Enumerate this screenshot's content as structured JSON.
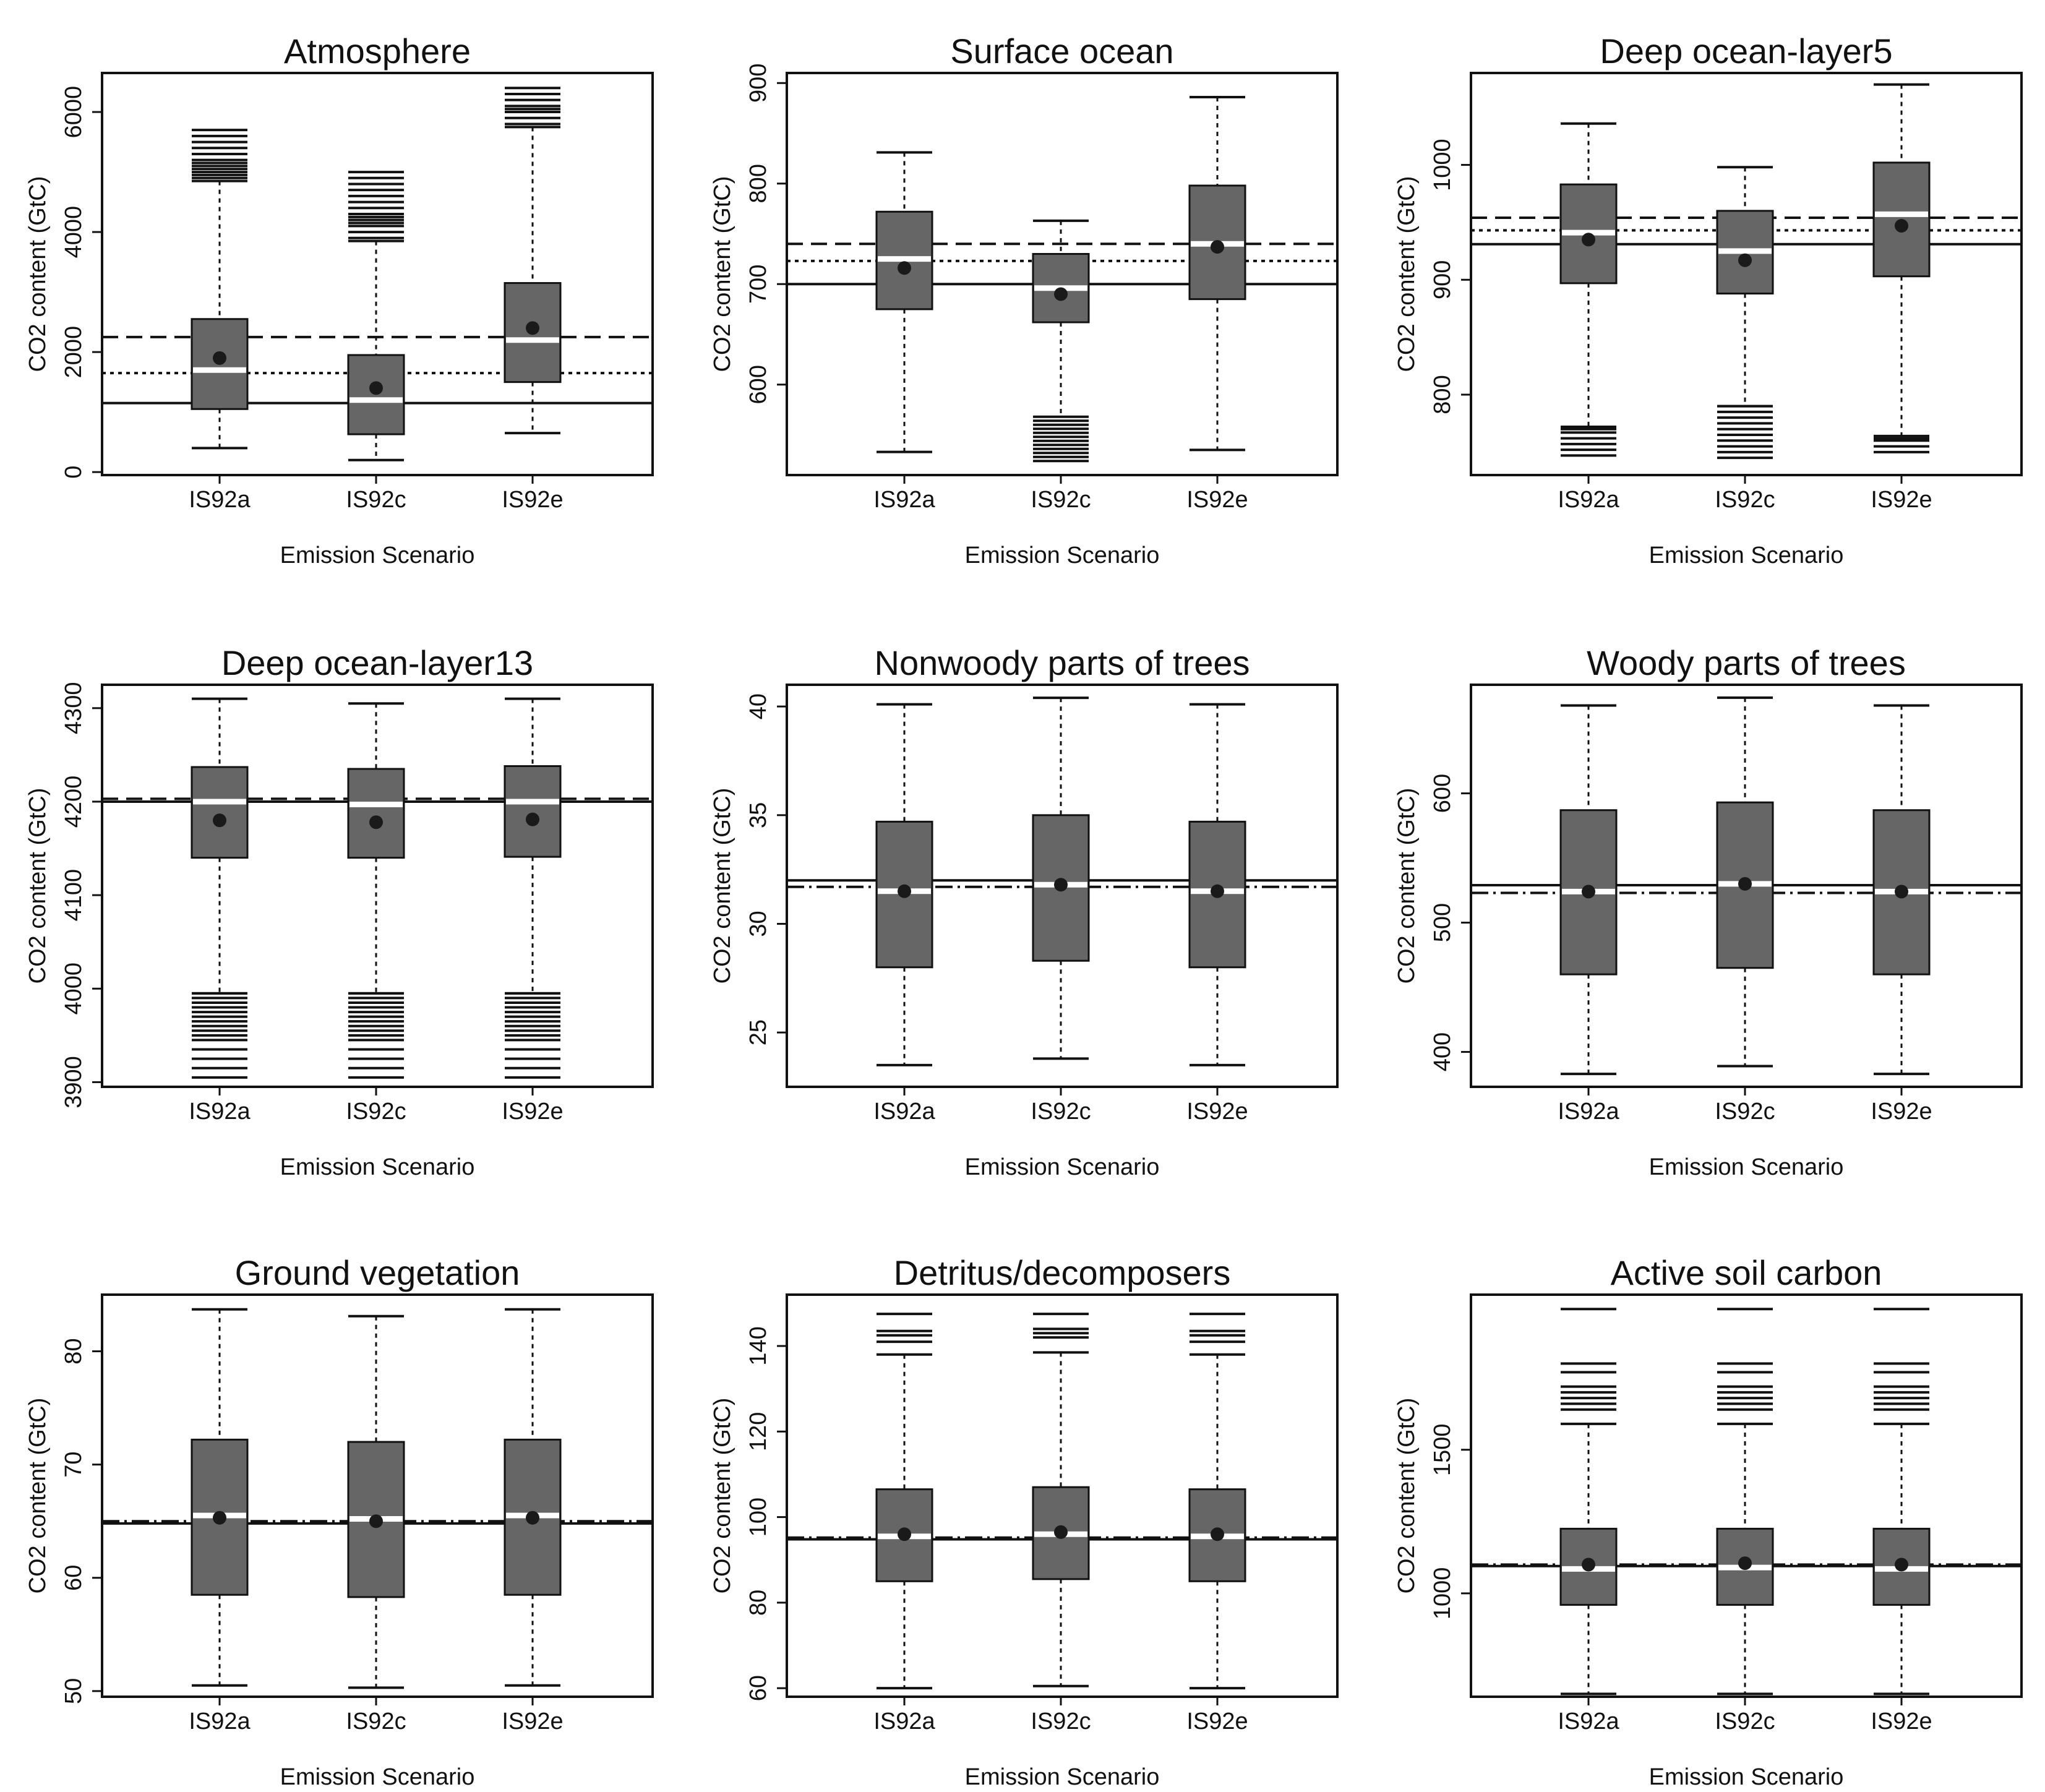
{
  "figure": {
    "x_axis_label": "Emission Scenario",
    "y_axis_label": "CO2 content (GtC)",
    "box_color": "#666666",
    "median_color": "#ffffff",
    "line_color": "#111111"
  },
  "chart_data": [
    {
      "type": "boxplot",
      "title": "Atmosphere",
      "categories": [
        "IS92a",
        "IS92c",
        "IS92e"
      ],
      "ylim": [
        -50,
        6650
      ],
      "yticks": [
        0,
        2000,
        4000,
        6000
      ],
      "boxes": [
        {
          "q1": 1050,
          "median": 1700,
          "q3": 2550,
          "mean": 1900,
          "whisker_low": 400,
          "whisker_high": 4850,
          "outliers": [
            4900,
            4950,
            5000,
            5050,
            5100,
            5150,
            5200,
            5300,
            5400,
            5500,
            5600,
            5700
          ]
        },
        {
          "q1": 630,
          "median": 1200,
          "q3": 1950,
          "mean": 1400,
          "whisker_low": 200,
          "whisker_high": 3850,
          "outliers": [
            3900,
            4000,
            4100,
            4150,
            4200,
            4250,
            4300,
            4400,
            4500,
            4600,
            4700,
            4800,
            4900,
            5000
          ]
        },
        {
          "q1": 1500,
          "median": 2200,
          "q3": 3150,
          "mean": 2400,
          "whisker_low": 650,
          "whisker_high": 5750,
          "outliers": [
            5800,
            5900,
            6000,
            6050,
            6100,
            6200,
            6300,
            6400
          ]
        }
      ],
      "reference_lines": [
        {
          "style": "solid",
          "value": 1150
        },
        {
          "style": "dotted",
          "value": 1650
        },
        {
          "style": "dashed",
          "value": 2250
        }
      ]
    },
    {
      "type": "boxplot",
      "title": "Surface ocean",
      "categories": [
        "IS92a",
        "IS92c",
        "IS92e"
      ],
      "ylim": [
        510,
        910
      ],
      "yticks": [
        600,
        700,
        800,
        900
      ],
      "boxes": [
        {
          "q1": 675,
          "median": 725,
          "q3": 772,
          "mean": 716,
          "whisker_low": 533,
          "whisker_high": 831,
          "outliers": []
        },
        {
          "q1": 662,
          "median": 696,
          "q3": 730,
          "mean": 690,
          "whisker_low": 568,
          "whisker_high": 763,
          "outliers": [
            524,
            528,
            532,
            536,
            540,
            544,
            548,
            552,
            556,
            560,
            564
          ]
        },
        {
          "q1": 685,
          "median": 740,
          "q3": 798,
          "mean": 737,
          "whisker_low": 535,
          "whisker_high": 886,
          "outliers": []
        }
      ],
      "reference_lines": [
        {
          "style": "solid",
          "value": 700
        },
        {
          "style": "dotted",
          "value": 723
        },
        {
          "style": "dashed",
          "value": 740
        }
      ]
    },
    {
      "type": "boxplot",
      "title": "Deep ocean-layer5",
      "categories": [
        "IS92a",
        "IS92c",
        "IS92e"
      ],
      "ylim": [
        730,
        1080
      ],
      "yticks": [
        800,
        900,
        1000
      ],
      "boxes": [
        {
          "q1": 897,
          "median": 941,
          "q3": 983,
          "mean": 935,
          "whisker_low": 770,
          "whisker_high": 1036,
          "outliers": [
            747,
            752,
            757,
            762,
            767,
            772
          ]
        },
        {
          "q1": 888,
          "median": 925,
          "q3": 960,
          "mean": 917,
          "whisker_low": 790,
          "whisker_high": 998,
          "outliers": [
            745,
            750,
            755,
            760,
            765,
            770,
            775,
            780,
            785,
            790
          ]
        },
        {
          "q1": 903,
          "median": 957,
          "q3": 1002,
          "mean": 947,
          "whisker_low": 762,
          "whisker_high": 1070,
          "outliers": [
            750,
            755,
            760,
            764
          ]
        }
      ],
      "reference_lines": [
        {
          "style": "solid",
          "value": 931
        },
        {
          "style": "dotted",
          "value": 943
        },
        {
          "style": "dashed",
          "value": 954
        }
      ]
    },
    {
      "type": "boxplot",
      "title": "Deep ocean-layer13",
      "categories": [
        "IS92a",
        "IS92c",
        "IS92e"
      ],
      "ylim": [
        3895,
        4325
      ],
      "yticks": [
        3900,
        4000,
        4100,
        4200,
        4300
      ],
      "boxes": [
        {
          "q1": 4140,
          "median": 4200,
          "q3": 4237,
          "mean": 4180,
          "whisker_low": 3995,
          "whisker_high": 4310,
          "outliers": [
            3905,
            3915,
            3925,
            3935,
            3945,
            3950,
            3955,
            3960,
            3965,
            3970,
            3975,
            3980,
            3985,
            3990,
            3995
          ]
        },
        {
          "q1": 4140,
          "median": 4197,
          "q3": 4235,
          "mean": 4178,
          "whisker_low": 3995,
          "whisker_high": 4305,
          "outliers": [
            3905,
            3915,
            3925,
            3935,
            3945,
            3950,
            3955,
            3960,
            3965,
            3970,
            3975,
            3980,
            3985,
            3990,
            3995
          ]
        },
        {
          "q1": 4141,
          "median": 4200,
          "q3": 4238,
          "mean": 4181,
          "whisker_low": 3995,
          "whisker_high": 4310,
          "outliers": [
            3905,
            3915,
            3925,
            3935,
            3945,
            3950,
            3955,
            3960,
            3965,
            3970,
            3975,
            3980,
            3985,
            3990,
            3995
          ]
        }
      ],
      "reference_lines": [
        {
          "style": "solid",
          "value": 4200
        },
        {
          "style": "dashed",
          "value": 4203
        }
      ]
    },
    {
      "type": "boxplot",
      "title": "Nonwoody parts of trees",
      "categories": [
        "IS92a",
        "IS92c",
        "IS92e"
      ],
      "ylim": [
        22.5,
        41
      ],
      "yticks": [
        25,
        30,
        35,
        40
      ],
      "boxes": [
        {
          "q1": 28,
          "median": 31.5,
          "q3": 34.7,
          "mean": 31.5,
          "whisker_low": 23.5,
          "whisker_high": 40.1,
          "outliers": []
        },
        {
          "q1": 28.3,
          "median": 31.8,
          "q3": 35,
          "mean": 31.8,
          "whisker_low": 23.8,
          "whisker_high": 40.4,
          "outliers": []
        },
        {
          "q1": 28,
          "median": 31.5,
          "q3": 34.7,
          "mean": 31.5,
          "whisker_low": 23.5,
          "whisker_high": 40.1,
          "outliers": []
        }
      ],
      "reference_lines": [
        {
          "style": "solid",
          "value": 32
        },
        {
          "style": "dashdot",
          "value": 31.7
        }
      ]
    },
    {
      "type": "boxplot",
      "title": "Woody parts of trees",
      "categories": [
        "IS92a",
        "IS92c",
        "IS92e"
      ],
      "ylim": [
        373,
        684
      ],
      "yticks": [
        400,
        500,
        600
      ],
      "boxes": [
        {
          "q1": 460,
          "median": 524,
          "q3": 587,
          "mean": 524,
          "whisker_low": 383,
          "whisker_high": 668,
          "outliers": []
        },
        {
          "q1": 465,
          "median": 530,
          "q3": 593,
          "mean": 530,
          "whisker_low": 389,
          "whisker_high": 674,
          "outliers": []
        },
        {
          "q1": 460,
          "median": 524,
          "q3": 587,
          "mean": 524,
          "whisker_low": 383,
          "whisker_high": 668,
          "outliers": []
        }
      ],
      "reference_lines": [
        {
          "style": "solid",
          "value": 529
        },
        {
          "style": "dashdot",
          "value": 523
        }
      ]
    },
    {
      "type": "boxplot",
      "title": "Ground vegetation",
      "categories": [
        "IS92a",
        "IS92c",
        "IS92e"
      ],
      "ylim": [
        49.5,
        85
      ],
      "yticks": [
        50,
        60,
        70,
        80
      ],
      "boxes": [
        {
          "q1": 58.5,
          "median": 65.5,
          "q3": 72.2,
          "mean": 65.3,
          "whisker_low": 50.5,
          "whisker_high": 83.7,
          "outliers": []
        },
        {
          "q1": 58.3,
          "median": 65.2,
          "q3": 72,
          "mean": 65,
          "whisker_low": 50.3,
          "whisker_high": 83.1,
          "outliers": []
        },
        {
          "q1": 58.5,
          "median": 65.5,
          "q3": 72.2,
          "mean": 65.3,
          "whisker_low": 50.5,
          "whisker_high": 83.7,
          "outliers": []
        }
      ],
      "reference_lines": [
        {
          "style": "solid",
          "value": 64.8
        },
        {
          "style": "dashdot",
          "value": 65
        }
      ]
    },
    {
      "type": "boxplot",
      "title": "Detritus/decomposers",
      "categories": [
        "IS92a",
        "IS92c",
        "IS92e"
      ],
      "ylim": [
        58,
        152
      ],
      "yticks": [
        60,
        80,
        100,
        120,
        140
      ],
      "boxes": [
        {
          "q1": 85,
          "median": 95.5,
          "q3": 106.5,
          "mean": 96,
          "whisker_low": 60,
          "whisker_high": 138,
          "outliers": [
            141,
            142.5,
            143.5,
            147.5
          ]
        },
        {
          "q1": 85.5,
          "median": 96,
          "q3": 107,
          "mean": 96.5,
          "whisker_low": 60.5,
          "whisker_high": 138.5,
          "outliers": [
            142,
            143,
            144,
            147.5
          ]
        },
        {
          "q1": 85,
          "median": 95.5,
          "q3": 106.5,
          "mean": 96,
          "whisker_low": 60,
          "whisker_high": 138,
          "outliers": [
            141,
            142.5,
            143.5,
            147.5
          ]
        }
      ],
      "reference_lines": [
        {
          "style": "solid",
          "value": 94.8
        },
        {
          "style": "dashdot",
          "value": 95.2
        }
      ]
    },
    {
      "type": "boxplot",
      "title": "Active soil carbon",
      "categories": [
        "IS92a",
        "IS92c",
        "IS92e"
      ],
      "ylim": [
        640,
        2040
      ],
      "yticks": [
        1000,
        1500
      ],
      "boxes": [
        {
          "q1": 960,
          "median": 1085,
          "q3": 1225,
          "mean": 1100,
          "whisker_low": 650,
          "whisker_high": 1590,
          "outliers": [
            1640,
            1660,
            1680,
            1700,
            1720,
            1770,
            1800,
            1990
          ]
        },
        {
          "q1": 960,
          "median": 1090,
          "q3": 1225,
          "mean": 1105,
          "whisker_low": 650,
          "whisker_high": 1590,
          "outliers": [
            1640,
            1660,
            1680,
            1700,
            1720,
            1770,
            1800,
            1990
          ]
        },
        {
          "q1": 960,
          "median": 1085,
          "q3": 1225,
          "mean": 1100,
          "whisker_low": 650,
          "whisker_high": 1590,
          "outliers": [
            1640,
            1660,
            1680,
            1700,
            1720,
            1770,
            1800,
            1990
          ]
        }
      ],
      "reference_lines": [
        {
          "style": "solid",
          "value": 1095
        },
        {
          "style": "dashdot",
          "value": 1100
        }
      ]
    }
  ]
}
